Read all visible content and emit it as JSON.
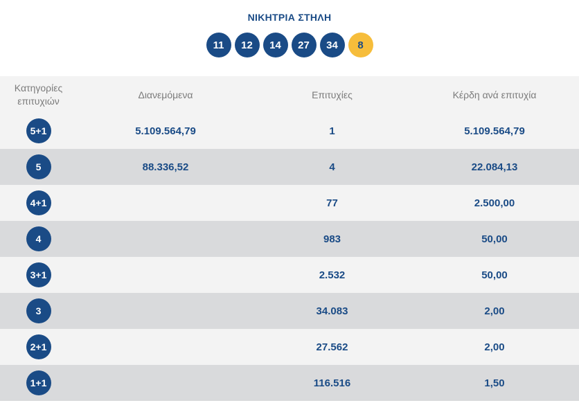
{
  "title": "ΝΙΚΗΤΡΙΑ ΣΤΗΛΗ",
  "winning_numbers": [
    "11",
    "12",
    "14",
    "27",
    "34"
  ],
  "joker": "8",
  "colors": {
    "ball": "#1a4b86",
    "joker": "#f6bd3b",
    "row_light": "#f3f3f3",
    "row_dark": "#d9dadc"
  },
  "table": {
    "headers": {
      "category_line1": "Κατηγορίες",
      "category_line2": "επιτυχιών",
      "distributed": "Διανεμόμενα",
      "winners": "Επιτυχίες",
      "prize": "Κέρδη ανά επιτυχία"
    },
    "rows": [
      {
        "category": "5+1",
        "distributed": "5.109.564,79",
        "winners": "1",
        "prize": "5.109.564,79"
      },
      {
        "category": "5",
        "distributed": "88.336,52",
        "winners": "4",
        "prize": "22.084,13"
      },
      {
        "category": "4+1",
        "distributed": "",
        "winners": "77",
        "prize": "2.500,00"
      },
      {
        "category": "4",
        "distributed": "",
        "winners": "983",
        "prize": "50,00"
      },
      {
        "category": "3+1",
        "distributed": "",
        "winners": "2.532",
        "prize": "50,00"
      },
      {
        "category": "3",
        "distributed": "",
        "winners": "34.083",
        "prize": "2,00"
      },
      {
        "category": "2+1",
        "distributed": "",
        "winners": "27.562",
        "prize": "2,00"
      },
      {
        "category": "1+1",
        "distributed": "",
        "winners": "116.516",
        "prize": "1,50"
      }
    ]
  }
}
